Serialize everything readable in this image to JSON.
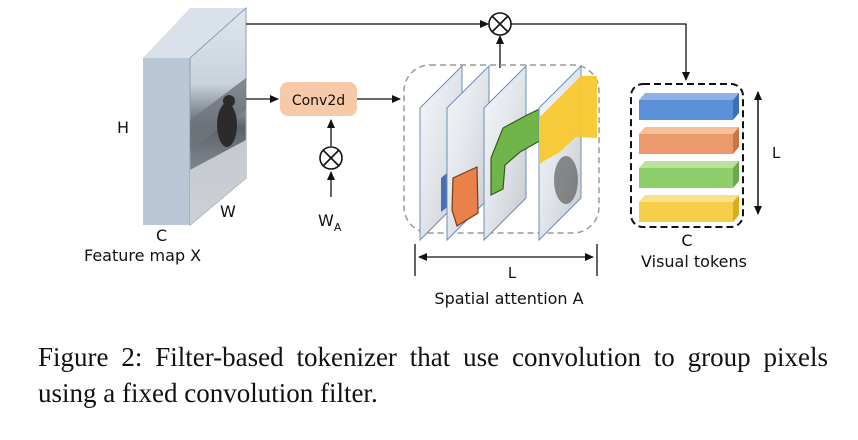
{
  "diagram": {
    "feature_map": {
      "label": "Feature map X",
      "dim_h": "H",
      "dim_w": "W",
      "dim_c": "C"
    },
    "conv": {
      "label": "Conv2d"
    },
    "weights": {
      "label": "W",
      "subscript": "A"
    },
    "attention": {
      "label": "Spatial attention A",
      "dim_l": "L"
    },
    "tokens": {
      "label": "Visual tokens",
      "dim_l": "L",
      "dim_c": "C",
      "colors": [
        "#5b8fd6",
        "#ea9a6b",
        "#8fcf6a",
        "#f5cf4a"
      ]
    },
    "operator_symbol": "multiply-icon"
  },
  "caption": "Figure 2:  Filter-based tokenizer that use convolution to group pixels using a fixed convolution filter."
}
